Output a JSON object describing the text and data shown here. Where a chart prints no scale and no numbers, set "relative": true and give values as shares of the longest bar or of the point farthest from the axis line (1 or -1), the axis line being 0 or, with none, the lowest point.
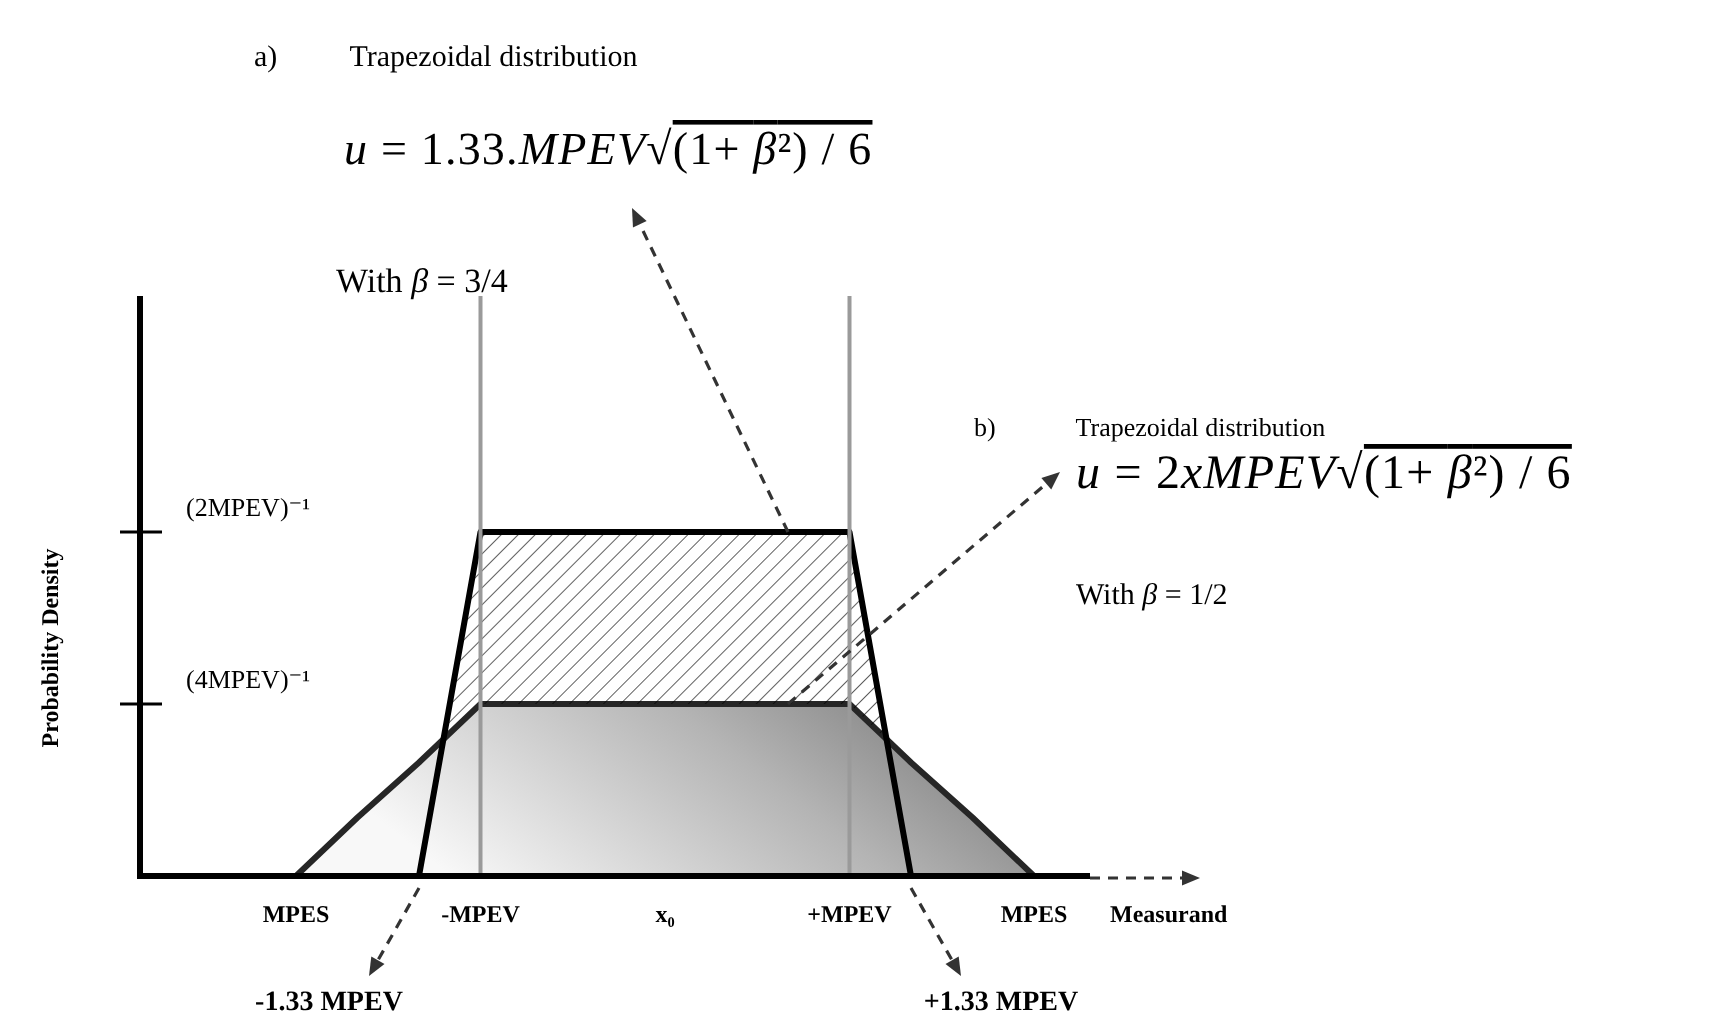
{
  "chart_data": {
    "type": "area",
    "relative": true,
    "xlabel": "Measurand",
    "categories": [
      "MPES",
      null,
      null,
      "-MPEV",
      null,
      null,
      "x₀",
      null,
      null,
      "+MPEV",
      null,
      null,
      "MPES"
    ],
    "series": [
      {
        "color": "#000000",
        "values": [
          null,
          null,
          0,
          1,
          1,
          1,
          1,
          1,
          1,
          1,
          0,
          null,
          null
        ]
      },
      {
        "color": "#262626",
        "values": [
          0,
          0.17,
          0.33,
          0.5,
          0.5,
          0.5,
          0.5,
          0.5,
          0.5,
          0.5,
          0.33,
          0.17,
          0
        ]
      }
    ],
    "ref_lines": [
      {
        "axis": "x",
        "value": "-MPEV",
        "color": "#9a9a9a"
      },
      {
        "axis": "x",
        "value": "+MPEV",
        "color": "#9a9a9a"
      }
    ],
    "annotations": [
      "a)\tTrapezoidal distribution",
      "u = 1.33.MPEV√(1+ β²) / 6",
      "With β = 3/4",
      "b)\tTrapezoidal distribution",
      "u = 2xMPEV√(1+ β²) / 6",
      "With β = 1/2",
      "(2MPEV)⁻¹",
      "(4MPEV)⁻¹",
      "-1.33 MPEV",
      "+1.33 MPEV",
      "Probability Density"
    ]
  }
}
